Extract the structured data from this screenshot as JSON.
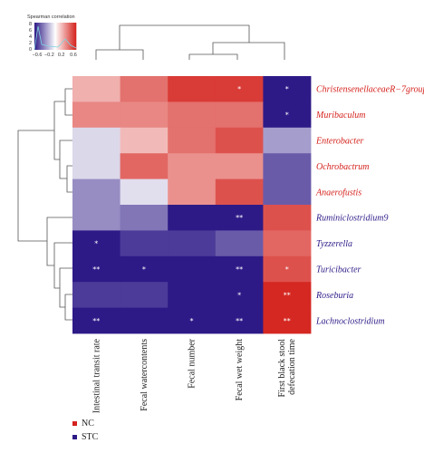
{
  "chart_data": {
    "type": "heatmap",
    "title": "",
    "rows": [
      {
        "name": "ChristensenellaceaeR−7group",
        "group": "NC"
      },
      {
        "name": "Muribaculum",
        "group": "NC"
      },
      {
        "name": "Enterobacter",
        "group": "NC"
      },
      {
        "name": "Ochrobactrum",
        "group": "NC"
      },
      {
        "name": "Anaerofustis",
        "group": "NC"
      },
      {
        "name": "Ruminiclostridium9",
        "group": "STC"
      },
      {
        "name": "Tyzzerella",
        "group": "STC"
      },
      {
        "name": "Turicibacter",
        "group": "STC"
      },
      {
        "name": "Roseburia",
        "group": "STC"
      },
      {
        "name": "Lachnoclostridium",
        "group": "STC"
      }
    ],
    "columns": [
      "Intestinal transit rate",
      "Fecal watercontents",
      "Fecal number",
      "Fecal wet weight",
      "First black stool defecation time"
    ],
    "values": [
      [
        0.25,
        0.45,
        0.62,
        0.62,
        -0.72
      ],
      [
        0.38,
        0.38,
        0.45,
        0.45,
        -0.72
      ],
      [
        -0.12,
        0.22,
        0.45,
        0.55,
        -0.3
      ],
      [
        -0.12,
        0.48,
        0.35,
        0.35,
        -0.5
      ],
      [
        -0.35,
        -0.1,
        0.35,
        0.55,
        -0.5
      ],
      [
        -0.35,
        -0.42,
        -0.72,
        -0.72,
        0.55
      ],
      [
        -0.72,
        -0.6,
        -0.6,
        -0.5,
        0.48
      ],
      [
        -0.72,
        -0.72,
        -0.72,
        -0.72,
        0.55
      ],
      [
        -0.6,
        -0.6,
        -0.72,
        -0.72,
        0.68
      ],
      [
        -0.72,
        -0.72,
        -0.72,
        -0.72,
        0.68
      ]
    ],
    "significance": [
      [
        "",
        "",
        "",
        "*",
        "*"
      ],
      [
        "",
        "",
        "",
        "",
        "*"
      ],
      [
        "",
        "",
        "",
        "",
        ""
      ],
      [
        "",
        "",
        "",
        "",
        ""
      ],
      [
        "",
        "",
        "",
        "",
        ""
      ],
      [
        "",
        "",
        "",
        "**",
        ""
      ],
      [
        "*",
        "",
        "",
        "",
        ""
      ],
      [
        "**",
        "*",
        "",
        "**",
        "*"
      ],
      [
        "",
        "",
        "",
        "*",
        "**"
      ],
      [
        "**",
        "",
        "*",
        "**",
        "**"
      ]
    ],
    "legend": {
      "title": "Spearman correlation",
      "color_ticks": [
        "−0.6",
        "−0.2",
        "0.2",
        "0.6"
      ],
      "count_ticks": [
        "8",
        "6",
        "4",
        "2",
        "0"
      ],
      "range": [
        -0.7,
        0.7
      ],
      "colors": {
        "low": "#2e1a87",
        "mid": "#ffffff",
        "high": "#d4221c"
      }
    },
    "groups": [
      {
        "name": "NC",
        "color": "#d4221c"
      },
      {
        "name": "STC",
        "color": "#2e1a87"
      }
    ]
  }
}
